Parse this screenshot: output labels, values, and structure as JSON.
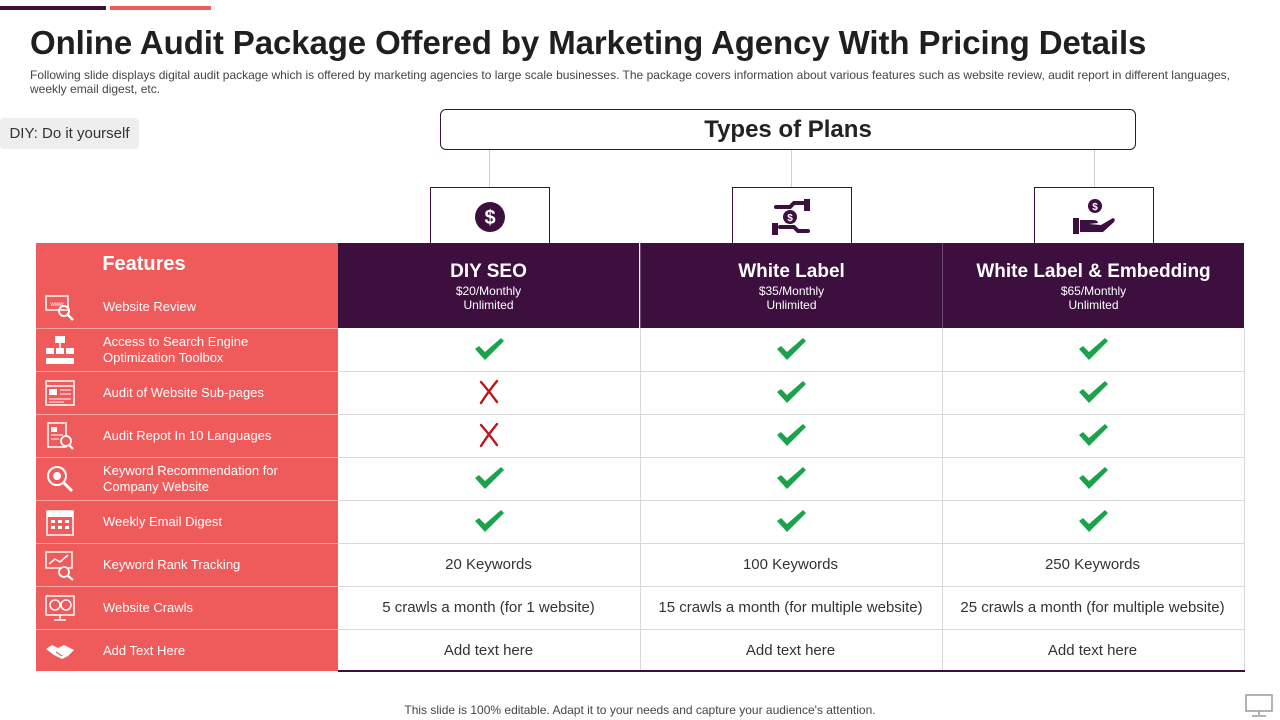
{
  "slide": {
    "title": "Online Audit Package Offered by Marketing Agency With Pricing Details",
    "subtitle": "Following slide displays digital audit package which is offered by marketing agencies to large scale businesses. The package covers information about various features such as website review, audit report in different languages, weekly email digest, etc.",
    "note": "DIY: Do it yourself",
    "plans_heading": "Types of Plans",
    "footer": "This slide is 100% editable. Adapt it to your needs and capture your audience's attention."
  },
  "colors": {
    "accent_dark": "#3c0f3f",
    "accent_coral": "#ef5b5b",
    "check": "#1aa34a",
    "cross": "#c0151b"
  },
  "features_header": "Features",
  "plans": [
    {
      "name": "DIY SEO",
      "price": "$20/Monthly",
      "period": "Unlimited",
      "icon": "dollar-coin-icon"
    },
    {
      "name": "White Label",
      "price": "$35/Monthly",
      "period": "Unlimited",
      "icon": "hand-dollar-icon"
    },
    {
      "name": "White Label & Embedding",
      "price": "$65/Monthly",
      "period": "Unlimited",
      "icon": "palm-coin-icon"
    }
  ],
  "features": [
    {
      "label": "Website Review",
      "icon": "www-magnifier-icon"
    },
    {
      "label": "Access to Search Engine Optimization Toolbox",
      "icon": "sitemap-icon",
      "values": [
        "check",
        "check",
        "check"
      ]
    },
    {
      "label": "Audit of Website Sub-pages",
      "icon": "browser-pages-icon",
      "values": [
        "cross",
        "check",
        "check"
      ]
    },
    {
      "label": "Audit Repot In 10 Languages",
      "icon": "report-search-icon",
      "values": [
        "cross",
        "check",
        "check"
      ]
    },
    {
      "label": "Keyword Recommendation  for Company Website",
      "icon": "keyword-search-icon",
      "values": [
        "check",
        "check",
        "check"
      ]
    },
    {
      "label": "Weekly Email Digest",
      "icon": "calendar-icon",
      "values": [
        "check",
        "check",
        "check"
      ]
    },
    {
      "label": "Keyword Rank Tracking",
      "icon": "rank-tracking-icon",
      "values": [
        "20 Keywords",
        "100 Keywords",
        "250 Keywords"
      ]
    },
    {
      "label": "Website Crawls",
      "icon": "monitor-dashboard-icon",
      "values": [
        "5 crawls a month (for 1 website)",
        "15 crawls a month (for multiple website)",
        "25 crawls a month (for multiple website)"
      ]
    },
    {
      "label": "Add Text Here",
      "icon": "handshake-icon",
      "values": [
        "Add text here",
        "Add text here",
        "Add text here"
      ]
    }
  ]
}
